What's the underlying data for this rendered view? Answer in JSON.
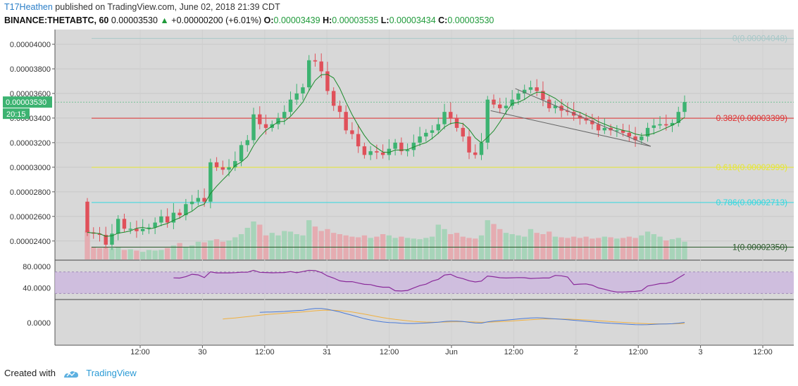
{
  "header": {
    "username": "T17Heathen",
    "published_text": "published on TradingView.com, June 02, 2018 21:39 CDT",
    "symbol": "BINANCE:THETABTC, 60",
    "last_price": "0.00003530",
    "change": "+0.00000200 (+6.01%)",
    "open_label": "O:",
    "open": "0.00003439",
    "high_label": "H:",
    "high": "0.00003535",
    "low_label": "L:",
    "low": "0.00003434",
    "close_label": "C:",
    "close": "0.00003530"
  },
  "footer": {
    "created_with": "Created with",
    "brand": "TradingView"
  },
  "colors": {
    "up": "#3cb371",
    "down": "#e0505a",
    "bg": "#d8d8d8",
    "sma": "#1a8a2a",
    "rsi": "#8a2a9a",
    "rsi_band": "#cdb8e0",
    "macd": "#4a7ad8",
    "signal": "#f0b040"
  },
  "chart_data": {
    "type": "candlestick",
    "price_axis": {
      "ticks": [
        "0.00004000",
        "0.00003800",
        "0.00003600",
        "0.00003400",
        "0.00003200",
        "0.00003000",
        "0.00002800",
        "0.00002600",
        "0.00002400"
      ],
      "tick_values": [
        4.0,
        3.8,
        3.6,
        3.4,
        3.2,
        3.0,
        2.8,
        2.6,
        2.4
      ],
      "ylim": [
        2.25,
        4.12
      ],
      "unit_scale": "1e-5"
    },
    "current_price_label": "0.00003530",
    "current_price_value": 3.53,
    "countdown_label": "20:15",
    "time_axis": {
      "labels": [
        "12:00",
        "30",
        "12:00",
        "31",
        "12:00",
        "Jun",
        "12:00",
        "2",
        "12:00",
        "3",
        "12:00"
      ]
    },
    "fib_levels": [
      {
        "label": "0(0.00004048)",
        "value": 4.048,
        "color": "#a8c8c8"
      },
      {
        "label": "0.382(0.00003399)",
        "value": 3.399,
        "color": "#e03030"
      },
      {
        "label": "0.618(0.00002999)",
        "value": 2.999,
        "color": "#e8e830"
      },
      {
        "label": "0.786(0.00002713)",
        "value": 2.713,
        "color": "#30d8e0"
      },
      {
        "label": "1(0.00002350)",
        "value": 2.35,
        "color": "#2a5a2a"
      }
    ],
    "trendlines": [
      {
        "from": [
          69.5,
          3.64
        ],
        "to": [
          91.5,
          3.17
        ]
      },
      {
        "from": [
          65.5,
          3.46
        ],
        "to": [
          91.5,
          3.17
        ]
      }
    ],
    "ohlc_closes": [
      2.47,
      2.46,
      2.45,
      2.37,
      2.46,
      2.58,
      2.5,
      2.5,
      2.48,
      2.5,
      2.51,
      2.55,
      2.6,
      2.55,
      2.63,
      2.61,
      2.7,
      2.72,
      2.75,
      2.72,
      3.04,
      3.0,
      2.98,
      3.0,
      3.05,
      3.18,
      3.22,
      3.43,
      3.35,
      3.32,
      3.35,
      3.4,
      3.45,
      3.55,
      3.6,
      3.65,
      3.87,
      3.86,
      3.78,
      3.62,
      3.5,
      3.45,
      3.3,
      3.27,
      3.17,
      3.1,
      3.13,
      3.12,
      3.1,
      3.15,
      3.2,
      3.13,
      3.14,
      3.2,
      3.25,
      3.28,
      3.3,
      3.35,
      3.45,
      3.4,
      3.32,
      3.25,
      3.12,
      3.1,
      3.2,
      3.55,
      3.51,
      3.48,
      3.5,
      3.55,
      3.6,
      3.63,
      3.65,
      3.62,
      3.55,
      3.48,
      3.5,
      3.46,
      3.45,
      3.42,
      3.4,
      3.38,
      3.35,
      3.3,
      3.32,
      3.3,
      3.3,
      3.28,
      3.25,
      3.22,
      3.25,
      3.32,
      3.34,
      3.35,
      3.34,
      3.36,
      3.45,
      3.53
    ],
    "volume": [
      0.46,
      0.2,
      0.18,
      0.2,
      0.18,
      0.2,
      0.15,
      0.16,
      0.14,
      0.12,
      0.15,
      0.14,
      0.15,
      0.18,
      0.22,
      0.26,
      0.2,
      0.22,
      0.28,
      0.27,
      0.3,
      0.32,
      0.28,
      0.3,
      0.35,
      0.4,
      0.5,
      0.6,
      0.55,
      0.38,
      0.42,
      0.38,
      0.45,
      0.44,
      0.4,
      0.38,
      0.62,
      0.52,
      0.45,
      0.48,
      0.42,
      0.4,
      0.38,
      0.36,
      0.35,
      0.38,
      0.34,
      0.36,
      0.4,
      0.38,
      0.34,
      0.36,
      0.34,
      0.33,
      0.32,
      0.34,
      0.36,
      0.55,
      0.48,
      0.4,
      0.42,
      0.36,
      0.34,
      0.33,
      0.38,
      0.62,
      0.56,
      0.48,
      0.42,
      0.4,
      0.38,
      0.36,
      0.48,
      0.42,
      0.4,
      0.44,
      0.36,
      0.35,
      0.34,
      0.36,
      0.34,
      0.36,
      0.33,
      0.34,
      0.36,
      0.35,
      0.33,
      0.34,
      0.36,
      0.34,
      0.38,
      0.44,
      0.4,
      0.36,
      0.3,
      0.32,
      0.34,
      0.28
    ],
    "rsi": {
      "ticks": [
        "80.0000",
        "40.0000"
      ],
      "tick_values": [
        80,
        40
      ],
      "ylim": [
        20,
        92
      ],
      "band": [
        30,
        70
      ]
    },
    "macd": {
      "ticks": [
        "0.0000"
      ],
      "tick_values": [
        0
      ],
      "ylim": [
        -1.25,
        1.25
      ]
    }
  }
}
